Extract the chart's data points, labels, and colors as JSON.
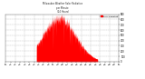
{
  "title": "Milwaukee Weather Solar Radiation per Minute (24 Hours)",
  "background_color": "#ffffff",
  "plot_background": "#ffffff",
  "grid_color": "#b0b0b0",
  "area_color": "#ff0000",
  "legend_label": "Solar Radiation",
  "legend_color": "#ff0000",
  "ymin": 0,
  "ymax": 900,
  "yticks": [
    0,
    100,
    200,
    300,
    400,
    500,
    600,
    700,
    800,
    900
  ],
  "num_points": 1440,
  "peak_minute": 680,
  "peak_value": 820,
  "sunrise_minute": 390,
  "sunset_minute": 1170,
  "sigma_factor": 3.8
}
